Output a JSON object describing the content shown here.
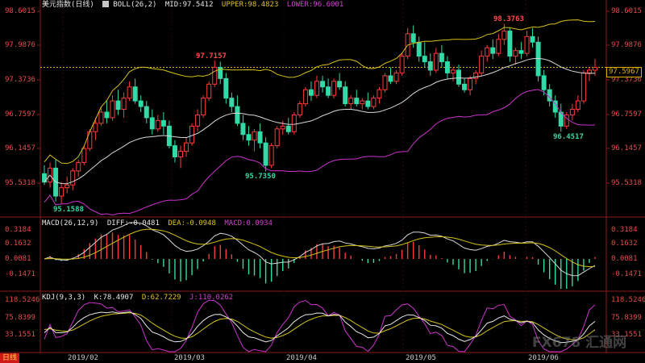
{
  "header": {
    "symbol": "美元指数",
    "period": "(日线)",
    "boll": "BOLL(26,2)",
    "mid": "MID:97.5412",
    "upper": "UPPER:98.4823",
    "lower": "LOWER:96.6001"
  },
  "macd_header": {
    "name": "MACD(26,12,9)",
    "diff": "DIFF:-0.0481",
    "dea": "DEA:-0.0948",
    "macd": "MACD:0.0934"
  },
  "kdj_header": {
    "name": "KDJ(9,3,3)",
    "k": "K:78.4907",
    "d": "D:62.7229",
    "j": "J:110.0262"
  },
  "price_axis": [
    "98.6015",
    "97.9876",
    "97.3736",
    "96.7597",
    "96.1457",
    "95.5318"
  ],
  "current_price": "97.5967",
  "macd_axis": [
    "0.3184",
    "0.1632",
    "0.0081",
    "-0.1471"
  ],
  "kdj_axis": [
    "118.5246",
    "75.8399",
    "33.1551"
  ],
  "date_axis": [
    "2019/02",
    "2019/03",
    "2019/04",
    "2019/05",
    "2019/06"
  ],
  "period_tab": "日线",
  "annotations": {
    "high1": "97.7157",
    "high2": "98.3763",
    "low1": "95.1588",
    "low2": "95.7350",
    "low3": "96.4517"
  },
  "watermark": "FX678 汇通网",
  "colors": {
    "up": "#ff3b3b",
    "down": "#33d9a6",
    "mid": "#d8d8d8",
    "upper": "#d4c21a",
    "lower": "#cc33cc",
    "k": "#e8e8e8",
    "d": "#d4c21a",
    "j": "#cc33cc"
  },
  "chart_data": {
    "type": "candlestick",
    "title": "美元指数(日线)",
    "ylim": [
      95.0,
      98.75
    ],
    "candles": [
      {
        "o": 95.7,
        "h": 95.85,
        "l": 95.5,
        "c": 95.55
      },
      {
        "o": 95.55,
        "h": 95.9,
        "l": 95.45,
        "c": 95.8
      },
      {
        "o": 95.8,
        "h": 95.95,
        "l": 95.2,
        "c": 95.3
      },
      {
        "o": 95.3,
        "h": 95.55,
        "l": 95.16,
        "c": 95.45
      },
      {
        "o": 95.45,
        "h": 95.65,
        "l": 95.35,
        "c": 95.5
      },
      {
        "o": 95.5,
        "h": 95.8,
        "l": 95.4,
        "c": 95.75
      },
      {
        "o": 95.75,
        "h": 95.95,
        "l": 95.65,
        "c": 95.9
      },
      {
        "o": 95.9,
        "h": 96.2,
        "l": 95.85,
        "c": 96.15
      },
      {
        "o": 96.15,
        "h": 96.5,
        "l": 96.1,
        "c": 96.45
      },
      {
        "o": 96.45,
        "h": 96.7,
        "l": 96.3,
        "c": 96.6
      },
      {
        "o": 96.6,
        "h": 96.9,
        "l": 96.55,
        "c": 96.8
      },
      {
        "o": 96.8,
        "h": 97.0,
        "l": 96.6,
        "c": 96.7
      },
      {
        "o": 96.7,
        "h": 97.1,
        "l": 96.65,
        "c": 97.0
      },
      {
        "o": 97.0,
        "h": 97.2,
        "l": 96.75,
        "c": 96.85
      },
      {
        "o": 96.85,
        "h": 97.15,
        "l": 96.7,
        "c": 97.05
      },
      {
        "o": 97.05,
        "h": 97.35,
        "l": 97.0,
        "c": 97.25
      },
      {
        "o": 97.25,
        "h": 97.4,
        "l": 96.95,
        "c": 97.0
      },
      {
        "o": 97.0,
        "h": 97.1,
        "l": 96.8,
        "c": 96.9
      },
      {
        "o": 96.9,
        "h": 97.0,
        "l": 96.6,
        "c": 96.7
      },
      {
        "o": 96.7,
        "h": 96.85,
        "l": 96.4,
        "c": 96.5
      },
      {
        "o": 96.5,
        "h": 96.75,
        "l": 96.45,
        "c": 96.65
      },
      {
        "o": 96.65,
        "h": 96.8,
        "l": 96.4,
        "c": 96.55
      },
      {
        "o": 96.55,
        "h": 96.65,
        "l": 96.15,
        "c": 96.2
      },
      {
        "o": 96.2,
        "h": 96.3,
        "l": 95.9,
        "c": 96.0
      },
      {
        "o": 96.0,
        "h": 96.2,
        "l": 95.8,
        "c": 96.1
      },
      {
        "o": 96.1,
        "h": 96.35,
        "l": 96.0,
        "c": 96.25
      },
      {
        "o": 96.25,
        "h": 96.6,
        "l": 96.2,
        "c": 96.55
      },
      {
        "o": 96.55,
        "h": 96.85,
        "l": 96.45,
        "c": 96.75
      },
      {
        "o": 96.75,
        "h": 97.1,
        "l": 96.7,
        "c": 97.05
      },
      {
        "o": 97.05,
        "h": 97.35,
        "l": 97.0,
        "c": 97.3
      },
      {
        "o": 97.3,
        "h": 97.72,
        "l": 97.25,
        "c": 97.6
      },
      {
        "o": 97.6,
        "h": 97.7,
        "l": 97.3,
        "c": 97.4
      },
      {
        "o": 97.4,
        "h": 97.5,
        "l": 96.95,
        "c": 97.05
      },
      {
        "o": 97.05,
        "h": 97.15,
        "l": 96.8,
        "c": 96.9
      },
      {
        "o": 96.9,
        "h": 97.1,
        "l": 96.55,
        "c": 96.6
      },
      {
        "o": 96.6,
        "h": 96.75,
        "l": 96.3,
        "c": 96.4
      },
      {
        "o": 96.4,
        "h": 96.55,
        "l": 96.2,
        "c": 96.3
      },
      {
        "o": 96.3,
        "h": 96.5,
        "l": 96.1,
        "c": 96.45
      },
      {
        "o": 96.45,
        "h": 96.6,
        "l": 96.15,
        "c": 96.25
      },
      {
        "o": 96.25,
        "h": 96.35,
        "l": 95.74,
        "c": 95.85
      },
      {
        "o": 95.85,
        "h": 96.25,
        "l": 95.8,
        "c": 96.2
      },
      {
        "o": 96.2,
        "h": 96.55,
        "l": 96.15,
        "c": 96.5
      },
      {
        "o": 96.5,
        "h": 96.65,
        "l": 96.4,
        "c": 96.55
      },
      {
        "o": 96.55,
        "h": 96.7,
        "l": 96.4,
        "c": 96.45
      },
      {
        "o": 96.45,
        "h": 96.8,
        "l": 96.4,
        "c": 96.75
      },
      {
        "o": 96.75,
        "h": 97.0,
        "l": 96.7,
        "c": 96.95
      },
      {
        "o": 96.95,
        "h": 97.25,
        "l": 96.9,
        "c": 97.2
      },
      {
        "o": 97.2,
        "h": 97.35,
        "l": 97.0,
        "c": 97.1
      },
      {
        "o": 97.1,
        "h": 97.45,
        "l": 97.05,
        "c": 97.35
      },
      {
        "o": 97.35,
        "h": 97.45,
        "l": 97.15,
        "c": 97.25
      },
      {
        "o": 97.25,
        "h": 97.4,
        "l": 97.05,
        "c": 97.1
      },
      {
        "o": 97.1,
        "h": 97.4,
        "l": 97.05,
        "c": 97.35
      },
      {
        "o": 97.35,
        "h": 97.5,
        "l": 97.2,
        "c": 97.25
      },
      {
        "o": 97.25,
        "h": 97.35,
        "l": 96.9,
        "c": 96.95
      },
      {
        "o": 96.95,
        "h": 97.1,
        "l": 96.85,
        "c": 97.05
      },
      {
        "o": 97.05,
        "h": 97.2,
        "l": 96.9,
        "c": 96.95
      },
      {
        "o": 96.95,
        "h": 97.05,
        "l": 96.85,
        "c": 97.0
      },
      {
        "o": 97.0,
        "h": 97.15,
        "l": 96.85,
        "c": 96.9
      },
      {
        "o": 96.9,
        "h": 97.1,
        "l": 96.85,
        "c": 97.05
      },
      {
        "o": 97.05,
        "h": 97.25,
        "l": 96.95,
        "c": 97.2
      },
      {
        "o": 97.2,
        "h": 97.5,
        "l": 97.15,
        "c": 97.45
      },
      {
        "o": 97.45,
        "h": 97.6,
        "l": 97.3,
        "c": 97.35
      },
      {
        "o": 97.35,
        "h": 97.55,
        "l": 97.3,
        "c": 97.5
      },
      {
        "o": 97.5,
        "h": 97.85,
        "l": 97.45,
        "c": 97.8
      },
      {
        "o": 97.8,
        "h": 98.3,
        "l": 97.75,
        "c": 98.2
      },
      {
        "o": 98.2,
        "h": 98.35,
        "l": 97.95,
        "c": 98.05
      },
      {
        "o": 98.05,
        "h": 98.15,
        "l": 97.7,
        "c": 97.8
      },
      {
        "o": 97.8,
        "h": 98.05,
        "l": 97.6,
        "c": 97.7
      },
      {
        "o": 97.7,
        "h": 97.85,
        "l": 97.45,
        "c": 97.55
      },
      {
        "o": 97.55,
        "h": 97.95,
        "l": 97.5,
        "c": 97.85
      },
      {
        "o": 97.85,
        "h": 98.0,
        "l": 97.6,
        "c": 97.7
      },
      {
        "o": 97.7,
        "h": 97.8,
        "l": 97.4,
        "c": 97.5
      },
      {
        "o": 97.5,
        "h": 97.6,
        "l": 97.35,
        "c": 97.55
      },
      {
        "o": 97.55,
        "h": 97.65,
        "l": 97.25,
        "c": 97.3
      },
      {
        "o": 97.3,
        "h": 97.4,
        "l": 97.15,
        "c": 97.2
      },
      {
        "o": 97.2,
        "h": 97.45,
        "l": 97.1,
        "c": 97.4
      },
      {
        "o": 97.4,
        "h": 97.55,
        "l": 97.3,
        "c": 97.5
      },
      {
        "o": 97.5,
        "h": 97.9,
        "l": 97.45,
        "c": 97.8
      },
      {
        "o": 97.8,
        "h": 98.0,
        "l": 97.7,
        "c": 97.95
      },
      {
        "o": 97.95,
        "h": 98.1,
        "l": 97.75,
        "c": 97.85
      },
      {
        "o": 97.85,
        "h": 98.2,
        "l": 97.8,
        "c": 98.1
      },
      {
        "o": 98.1,
        "h": 98.38,
        "l": 98.0,
        "c": 98.25
      },
      {
        "o": 98.25,
        "h": 98.3,
        "l": 97.7,
        "c": 97.8
      },
      {
        "o": 97.8,
        "h": 97.95,
        "l": 97.65,
        "c": 97.9
      },
      {
        "o": 97.9,
        "h": 98.05,
        "l": 97.75,
        "c": 97.85
      },
      {
        "o": 97.85,
        "h": 98.25,
        "l": 97.8,
        "c": 98.15
      },
      {
        "o": 98.15,
        "h": 98.3,
        "l": 97.95,
        "c": 98.05
      },
      {
        "o": 98.05,
        "h": 98.15,
        "l": 97.35,
        "c": 97.45
      },
      {
        "o": 97.45,
        "h": 97.55,
        "l": 97.1,
        "c": 97.2
      },
      {
        "o": 97.2,
        "h": 97.3,
        "l": 96.9,
        "c": 97.0
      },
      {
        "o": 97.0,
        "h": 97.1,
        "l": 96.7,
        "c": 96.8
      },
      {
        "o": 96.8,
        "h": 96.95,
        "l": 96.45,
        "c": 96.55
      },
      {
        "o": 96.55,
        "h": 96.8,
        "l": 96.5,
        "c": 96.75
      },
      {
        "o": 96.75,
        "h": 96.95,
        "l": 96.65,
        "c": 96.85
      },
      {
        "o": 96.85,
        "h": 97.1,
        "l": 96.8,
        "c": 97.0
      },
      {
        "o": 97.0,
        "h": 97.55,
        "l": 96.95,
        "c": 97.5
      },
      {
        "o": 97.5,
        "h": 97.6,
        "l": 97.35,
        "c": 97.55
      },
      {
        "o": 97.55,
        "h": 97.75,
        "l": 97.45,
        "c": 97.6
      }
    ]
  }
}
